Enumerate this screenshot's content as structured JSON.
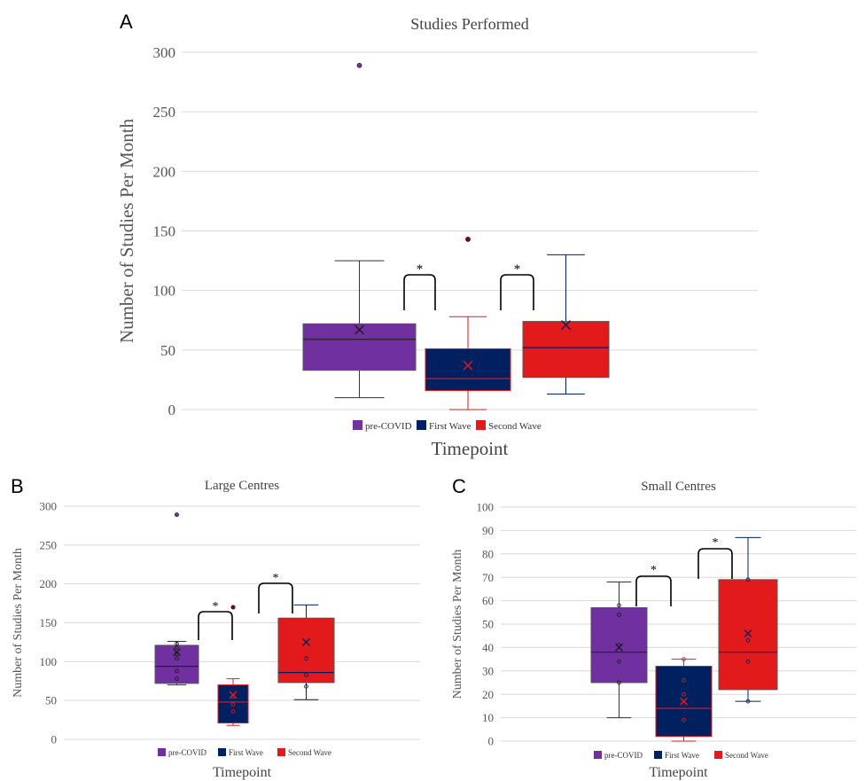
{
  "colors": {
    "pre": "#7030a0",
    "first": "#002060",
    "second": "#e31a1c"
  },
  "chart_data": [
    {
      "panel": "A",
      "type": "box",
      "title": "Studies Performed",
      "xlabel": "Timepoint",
      "ylabel": "Number of Studies Per Month",
      "ylim": [
        0,
        300
      ],
      "yticks": [
        0,
        50,
        100,
        150,
        200,
        250,
        300
      ],
      "grid": true,
      "legend": "bottom",
      "series": [
        {
          "name": "pre-COVID",
          "min": 10,
          "q1": 33,
          "median": 59,
          "q3": 72,
          "max": 125,
          "mean": 67,
          "outliers": [
            289
          ],
          "points": []
        },
        {
          "name": "First Wave",
          "min": 0,
          "q1": 16,
          "median": 26,
          "q3": 51,
          "max": 78,
          "mean": 37,
          "outliers": [
            143
          ],
          "points": []
        },
        {
          "name": "Second Wave",
          "min": 13,
          "q1": 27,
          "median": 52,
          "q3": 74,
          "max": 130,
          "mean": 71,
          "outliers": [],
          "points": []
        }
      ],
      "significance": [
        "*",
        "*"
      ]
    },
    {
      "panel": "B",
      "type": "box",
      "title": "Large Centres",
      "xlabel": "Timepoint",
      "ylabel": "Number of Studies Per Month",
      "ylim": [
        0,
        300
      ],
      "yticks": [
        0,
        50,
        100,
        150,
        200,
        250,
        300
      ],
      "grid": true,
      "legend": "bottom",
      "series": [
        {
          "name": "pre-COVID",
          "min": 70,
          "q1": 72,
          "median": 94,
          "q3": 121,
          "max": 126,
          "mean": 112,
          "outliers": [
            289
          ],
          "points": [
            78,
            88,
            104,
            110,
            118,
            123
          ]
        },
        {
          "name": "First Wave",
          "min": 18,
          "q1": 21,
          "median": 48,
          "q3": 70,
          "max": 78,
          "mean": 57,
          "outliers": [
            170
          ],
          "points": [
            36,
            45,
            55
          ]
        },
        {
          "name": "Second Wave",
          "min": 51,
          "q1": 73,
          "median": 86,
          "q3": 156,
          "max": 173,
          "mean": 125,
          "outliers": [],
          "points": [
            68,
            83,
            104
          ]
        }
      ],
      "significance": [
        "*",
        "*"
      ]
    },
    {
      "panel": "C",
      "type": "box",
      "title": "Small Centres",
      "xlabel": "Timepoint",
      "ylabel": "Number of Studies Per Month",
      "ylim": [
        0,
        100
      ],
      "yticks": [
        0,
        10,
        20,
        30,
        40,
        50,
        60,
        70,
        80,
        90,
        100
      ],
      "grid": true,
      "legend": "bottom",
      "series": [
        {
          "name": "pre-COVID",
          "min": 10,
          "q1": 25,
          "median": 38,
          "q3": 57,
          "max": 68,
          "mean": 40,
          "outliers": [],
          "points": [
            25,
            34,
            41,
            54,
            58
          ]
        },
        {
          "name": "First Wave",
          "min": 0,
          "q1": 2,
          "median": 14,
          "q3": 32,
          "max": 35,
          "mean": 17,
          "outliers": [],
          "points": [
            9,
            20,
            26,
            35
          ]
        },
        {
          "name": "Second Wave",
          "min": 17,
          "q1": 22,
          "median": 38,
          "q3": 69,
          "max": 87,
          "mean": 46,
          "outliers": [],
          "points": [
            17,
            34,
            43,
            69
          ]
        }
      ],
      "significance": [
        "*",
        "*"
      ]
    }
  ]
}
